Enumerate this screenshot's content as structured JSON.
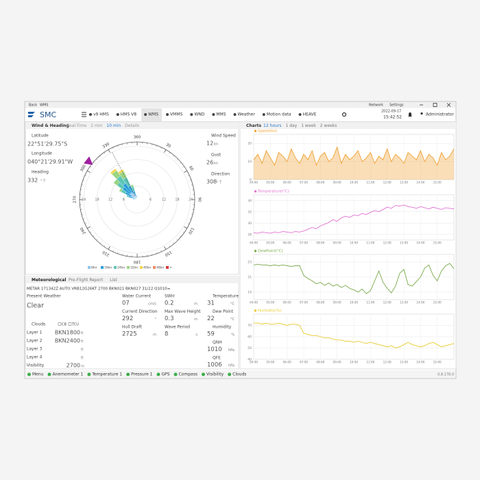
{
  "titlebar": {
    "back": "Back",
    "app": "WMS",
    "network": "Network",
    "settings": "Settings"
  },
  "nav": {
    "logo": "SMC",
    "tabs": [
      "v9 HMS",
      "HMS V8",
      "WMS",
      "VMMS",
      "WND",
      "MMS",
      "Weather",
      "Motion data",
      "HEAVE"
    ],
    "active_tab": 2,
    "date": "2022-09-17",
    "time": "15:42:52",
    "user": "Administrator"
  },
  "wind_panel": {
    "title": "Wind & Heading",
    "tabs": [
      "Real-Time",
      "2 min",
      "10 min",
      "Details"
    ],
    "active_tab": 2,
    "latitude": {
      "label": "Latitude",
      "value": "22°51'29.75\"S"
    },
    "longitude": {
      "label": "Longitude",
      "value": "040°21'29.91\"W"
    },
    "heading": {
      "label": "Heading",
      "value": 332,
      "unit": "° T"
    },
    "wind_speed": {
      "label": "Wind Speed",
      "value": 12,
      "unit": "kn"
    },
    "gust": {
      "label": "Gust",
      "value": 26,
      "unit": "kn"
    },
    "direction": {
      "label": "Direction",
      "value": 308,
      "unit": "° T"
    }
  },
  "wind_rose": {
    "type": "wind_rose",
    "directions": [
      280,
      290,
      300,
      310,
      320,
      330,
      340,
      350
    ],
    "sector_width": 10,
    "rlim": [
      0,
      24
    ],
    "rticks": [
      6,
      12,
      18,
      24
    ],
    "angle_ticks": [
      360,
      30,
      60,
      90,
      120,
      150,
      180,
      210,
      240,
      270,
      300,
      330
    ],
    "series": [
      {
        "name": "8kn",
        "color": "#8cc4ee",
        "values": [
          1,
          2,
          3,
          4,
          4,
          3,
          2,
          1
        ]
      },
      {
        "name": "16kn",
        "color": "#2b9ed8",
        "values": [
          1,
          2,
          3,
          4,
          5,
          4,
          2,
          1
        ]
      },
      {
        "name": "24kn",
        "color": "#5cc6b8",
        "values": [
          0,
          1,
          2,
          3,
          4,
          4,
          2,
          0
        ]
      },
      {
        "name": "32kn",
        "color": "#9bd483",
        "values": [
          0,
          0,
          1,
          2,
          3,
          3,
          1,
          0
        ]
      },
      {
        "name": "40kn",
        "color": "#f2d64a",
        "values": [
          0,
          0,
          0,
          0,
          1,
          1,
          0,
          0
        ]
      },
      {
        "name": "48kn",
        "color": "#f28a62",
        "values": [
          0,
          0,
          0,
          0,
          0,
          0,
          0,
          0
        ]
      },
      {
        "name": ">",
        "color": "#d23a3a",
        "values": [
          0,
          0,
          0,
          0,
          0,
          0,
          0,
          0
        ]
      }
    ]
  },
  "met_panel": {
    "tabs": [
      "Meteorological",
      "Pre-Flight Report",
      "List"
    ],
    "active_tab": 0,
    "metar": "METAR 171342Z AUTO VRB12G26KT 2700 BKN021 BKN027 31/22 Q1010=",
    "present_weather": {
      "label": "Present Weather",
      "value": "Clear"
    },
    "clouds": {
      "label": "Clouds",
      "flags": [
        "CB",
        "TCU"
      ]
    },
    "layers": [
      {
        "label": "Layer 1",
        "value": "BKN1800",
        "unit": "ft"
      },
      {
        "label": "Layer 2",
        "value": "BKN2400",
        "unit": "ft"
      },
      {
        "label": "Layer 3",
        "value": "",
        "unit": "ft"
      },
      {
        "label": "Layer 4",
        "value": "",
        "unit": "ft"
      },
      {
        "label": "Visibility",
        "value": "2700",
        "unit": "m"
      }
    ],
    "columns": [
      [
        {
          "label": "Water Current",
          "value": "07",
          "unit": "cm/s"
        },
        {
          "label": "Current Direction",
          "value": "292",
          "unit": "°"
        },
        {
          "label": "Hull Draft",
          "value": "2725",
          "unit": "m"
        }
      ],
      [
        {
          "label": "SWH",
          "value": "0.2",
          "unit": "m"
        },
        {
          "label": "Max Wave Height",
          "value": "0.3",
          "unit": "m"
        },
        {
          "label": "Wave Period",
          "value": "8",
          "unit": "s"
        }
      ],
      [
        {
          "label": "Temperature",
          "value": "31",
          "unit": "°C"
        },
        {
          "label": "Dew Point",
          "value": "22",
          "unit": "°C"
        },
        {
          "label": "Humidity",
          "value": "59",
          "unit": "%"
        },
        {
          "label": "QNH",
          "value": "1010",
          "unit": "hPa"
        },
        {
          "label": "QFE",
          "value": "1006",
          "unit": "hPa"
        }
      ]
    ]
  },
  "charts_panel": {
    "title": "Charts",
    "tabs": [
      "12 hours",
      "1 day",
      "1 week",
      "2 weeks"
    ],
    "active_tab": 0,
    "xticks": [
      "04:00",
      "05:00",
      "06:00",
      "07:00",
      "08:00",
      "09:00",
      "10:00",
      "11:00",
      "12:00",
      "13:00",
      "14:00",
      "15:00"
    ],
    "charts": [
      {
        "type": "line",
        "name": "Speed(kn)",
        "color": "#f0a030",
        "ylim": [
          0,
          25
        ],
        "yticks": [
          0,
          10,
          20
        ],
        "values": [
          11,
          14,
          9,
          16,
          12,
          8,
          15,
          13,
          10,
          17,
          12,
          9,
          14,
          11,
          16,
          8,
          13,
          15,
          10,
          12,
          18,
          9,
          14,
          11,
          13,
          16,
          10,
          12,
          15,
          9,
          13,
          11,
          17,
          10,
          14,
          12,
          9,
          15,
          13,
          11,
          16,
          10,
          14,
          12,
          8,
          15,
          11,
          13,
          17
        ]
      },
      {
        "type": "line",
        "name": "Temperature(°C)",
        "color": "#e070d0",
        "ylim": [
          27,
          35
        ],
        "yticks": [
          28,
          30,
          32,
          34
        ],
        "values": [
          28.3,
          28.2,
          28.4,
          28.3,
          28.2,
          28.4,
          28.3,
          28.5,
          28.4,
          28.3,
          28.5,
          28.4,
          28.6,
          28.9,
          29.2,
          29.0,
          29.5,
          29.8,
          30.1,
          30.6,
          30.3,
          30.9,
          31.2,
          31.0,
          31.4,
          31.3,
          31.7,
          31.5,
          31.9,
          32.2,
          32.0,
          32.4,
          32.8,
          32.6,
          33.1,
          33.0,
          33.2,
          32.9,
          32.8,
          32.6,
          32.9,
          32.7,
          32.5,
          32.8,
          32.6,
          32.4,
          32.7,
          32.6,
          32.5
        ]
      },
      {
        "type": "line",
        "name": "DewPoint(°C)",
        "color": "#78a848",
        "ylim": [
          18,
          24
        ],
        "yticks": [
          19,
          21,
          23
        ],
        "values": [
          22.6,
          22.7,
          22.6,
          22.6,
          22.5,
          22.6,
          22.5,
          22.6,
          22.5,
          22.4,
          22.5,
          22.5,
          21.2,
          20.8,
          20.5,
          20.1,
          20.3,
          19.9,
          20.2,
          19.8,
          20.0,
          19.6,
          19.9,
          19.5,
          19.3,
          19.0,
          19.4,
          18.8,
          19.2,
          20.5,
          21.8,
          20.3,
          19.5,
          18.9,
          19.8,
          21.5,
          22.0,
          20.0,
          19.8,
          20.4,
          21.0,
          22.2,
          22.6,
          21.2,
          20.5,
          21.8,
          22.5,
          22.8,
          22.1
        ]
      },
      {
        "type": "line",
        "name": "Humidity(%)",
        "color": "#e8c828",
        "ylim": [
          40,
          80
        ],
        "yticks": [
          40,
          50,
          60,
          70
        ],
        "values": [
          72,
          72,
          71,
          72,
          71,
          71,
          72,
          71,
          70,
          71,
          71,
          70,
          63,
          62,
          61,
          61,
          60,
          59,
          59,
          58,
          57,
          57,
          56,
          56,
          55,
          56,
          55,
          54,
          55,
          54,
          53,
          52,
          51,
          52,
          50,
          51,
          53,
          55,
          53,
          52,
          51,
          52,
          54,
          55,
          53,
          51,
          52,
          53,
          54
        ]
      }
    ]
  },
  "status": {
    "items": [
      "Menu",
      "Anemometer 1",
      "Temperature 1",
      "Pressure 1",
      "GPS",
      "Compass",
      "Visibility",
      "Clouds"
    ],
    "version": "0.8.178.0"
  }
}
